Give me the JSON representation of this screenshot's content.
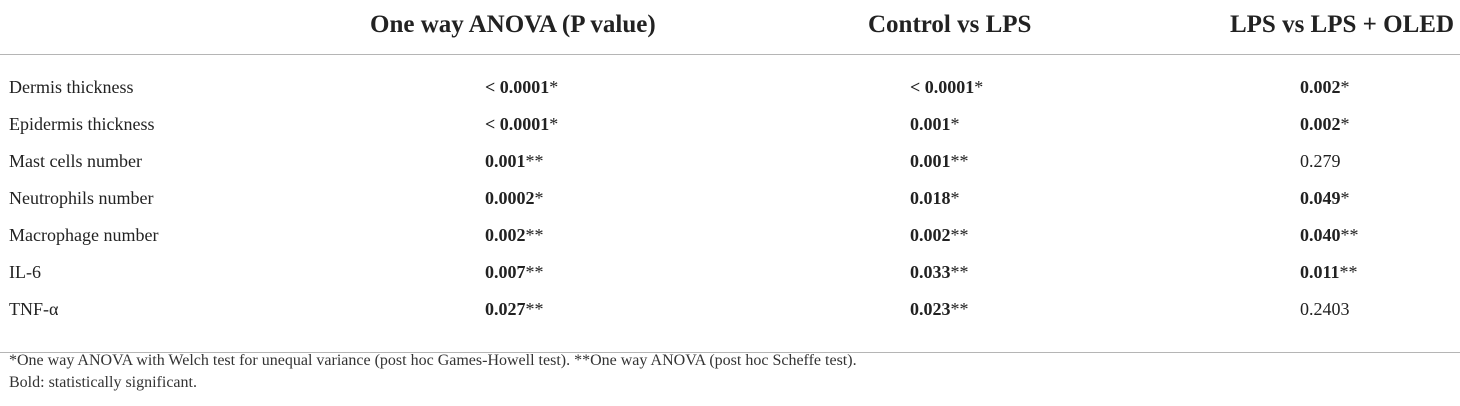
{
  "table": {
    "headers": [
      "",
      "One way ANOVA (P value)",
      "Control vs LPS",
      "LPS vs LPS + OLED"
    ],
    "rows": [
      {
        "label": "Dermis thickness",
        "cells": [
          {
            "value": "< 0.0001",
            "mark": "*",
            "bold": true
          },
          {
            "value": "< 0.0001",
            "mark": "*",
            "bold": true
          },
          {
            "value": "0.002",
            "mark": "*",
            "bold": true
          }
        ]
      },
      {
        "label": "Epidermis thickness",
        "cells": [
          {
            "value": "< 0.0001",
            "mark": "*",
            "bold": true
          },
          {
            "value": "0.001",
            "mark": "*",
            "bold": true
          },
          {
            "value": "0.002",
            "mark": "*",
            "bold": true
          }
        ]
      },
      {
        "label": "Mast cells number",
        "cells": [
          {
            "value": "0.001",
            "mark": "**",
            "bold": true
          },
          {
            "value": "0.001",
            "mark": "**",
            "bold": true
          },
          {
            "value": "0.279",
            "mark": "",
            "bold": false
          }
        ]
      },
      {
        "label": "Neutrophils number",
        "cells": [
          {
            "value": "0.0002",
            "mark": "*",
            "bold": true
          },
          {
            "value": "0.018",
            "mark": "*",
            "bold": true
          },
          {
            "value": "0.049",
            "mark": "*",
            "bold": true
          }
        ]
      },
      {
        "label": "Macrophage number",
        "cells": [
          {
            "value": "0.002",
            "mark": "**",
            "bold": true
          },
          {
            "value": "0.002",
            "mark": "**",
            "bold": true
          },
          {
            "value": "0.040",
            "mark": "**",
            "bold": true
          }
        ]
      },
      {
        "label": "IL-6",
        "cells": [
          {
            "value": "0.007",
            "mark": "**",
            "bold": true
          },
          {
            "value": "0.033",
            "mark": "**",
            "bold": true
          },
          {
            "value": "0.011",
            "mark": "**",
            "bold": true
          }
        ]
      },
      {
        "label": "TNF-α",
        "cells": [
          {
            "value": "0.027",
            "mark": "**",
            "bold": true
          },
          {
            "value": "0.023",
            "mark": "**",
            "bold": true
          },
          {
            "value": "0.2403",
            "mark": "",
            "bold": false
          }
        ]
      }
    ]
  },
  "footnotes": {
    "line1": "*One way ANOVA with Welch test for unequal variance (post hoc Games-Howell test). **One way ANOVA (post hoc Scheffe test).",
    "line2": "Bold: statistically significant."
  }
}
